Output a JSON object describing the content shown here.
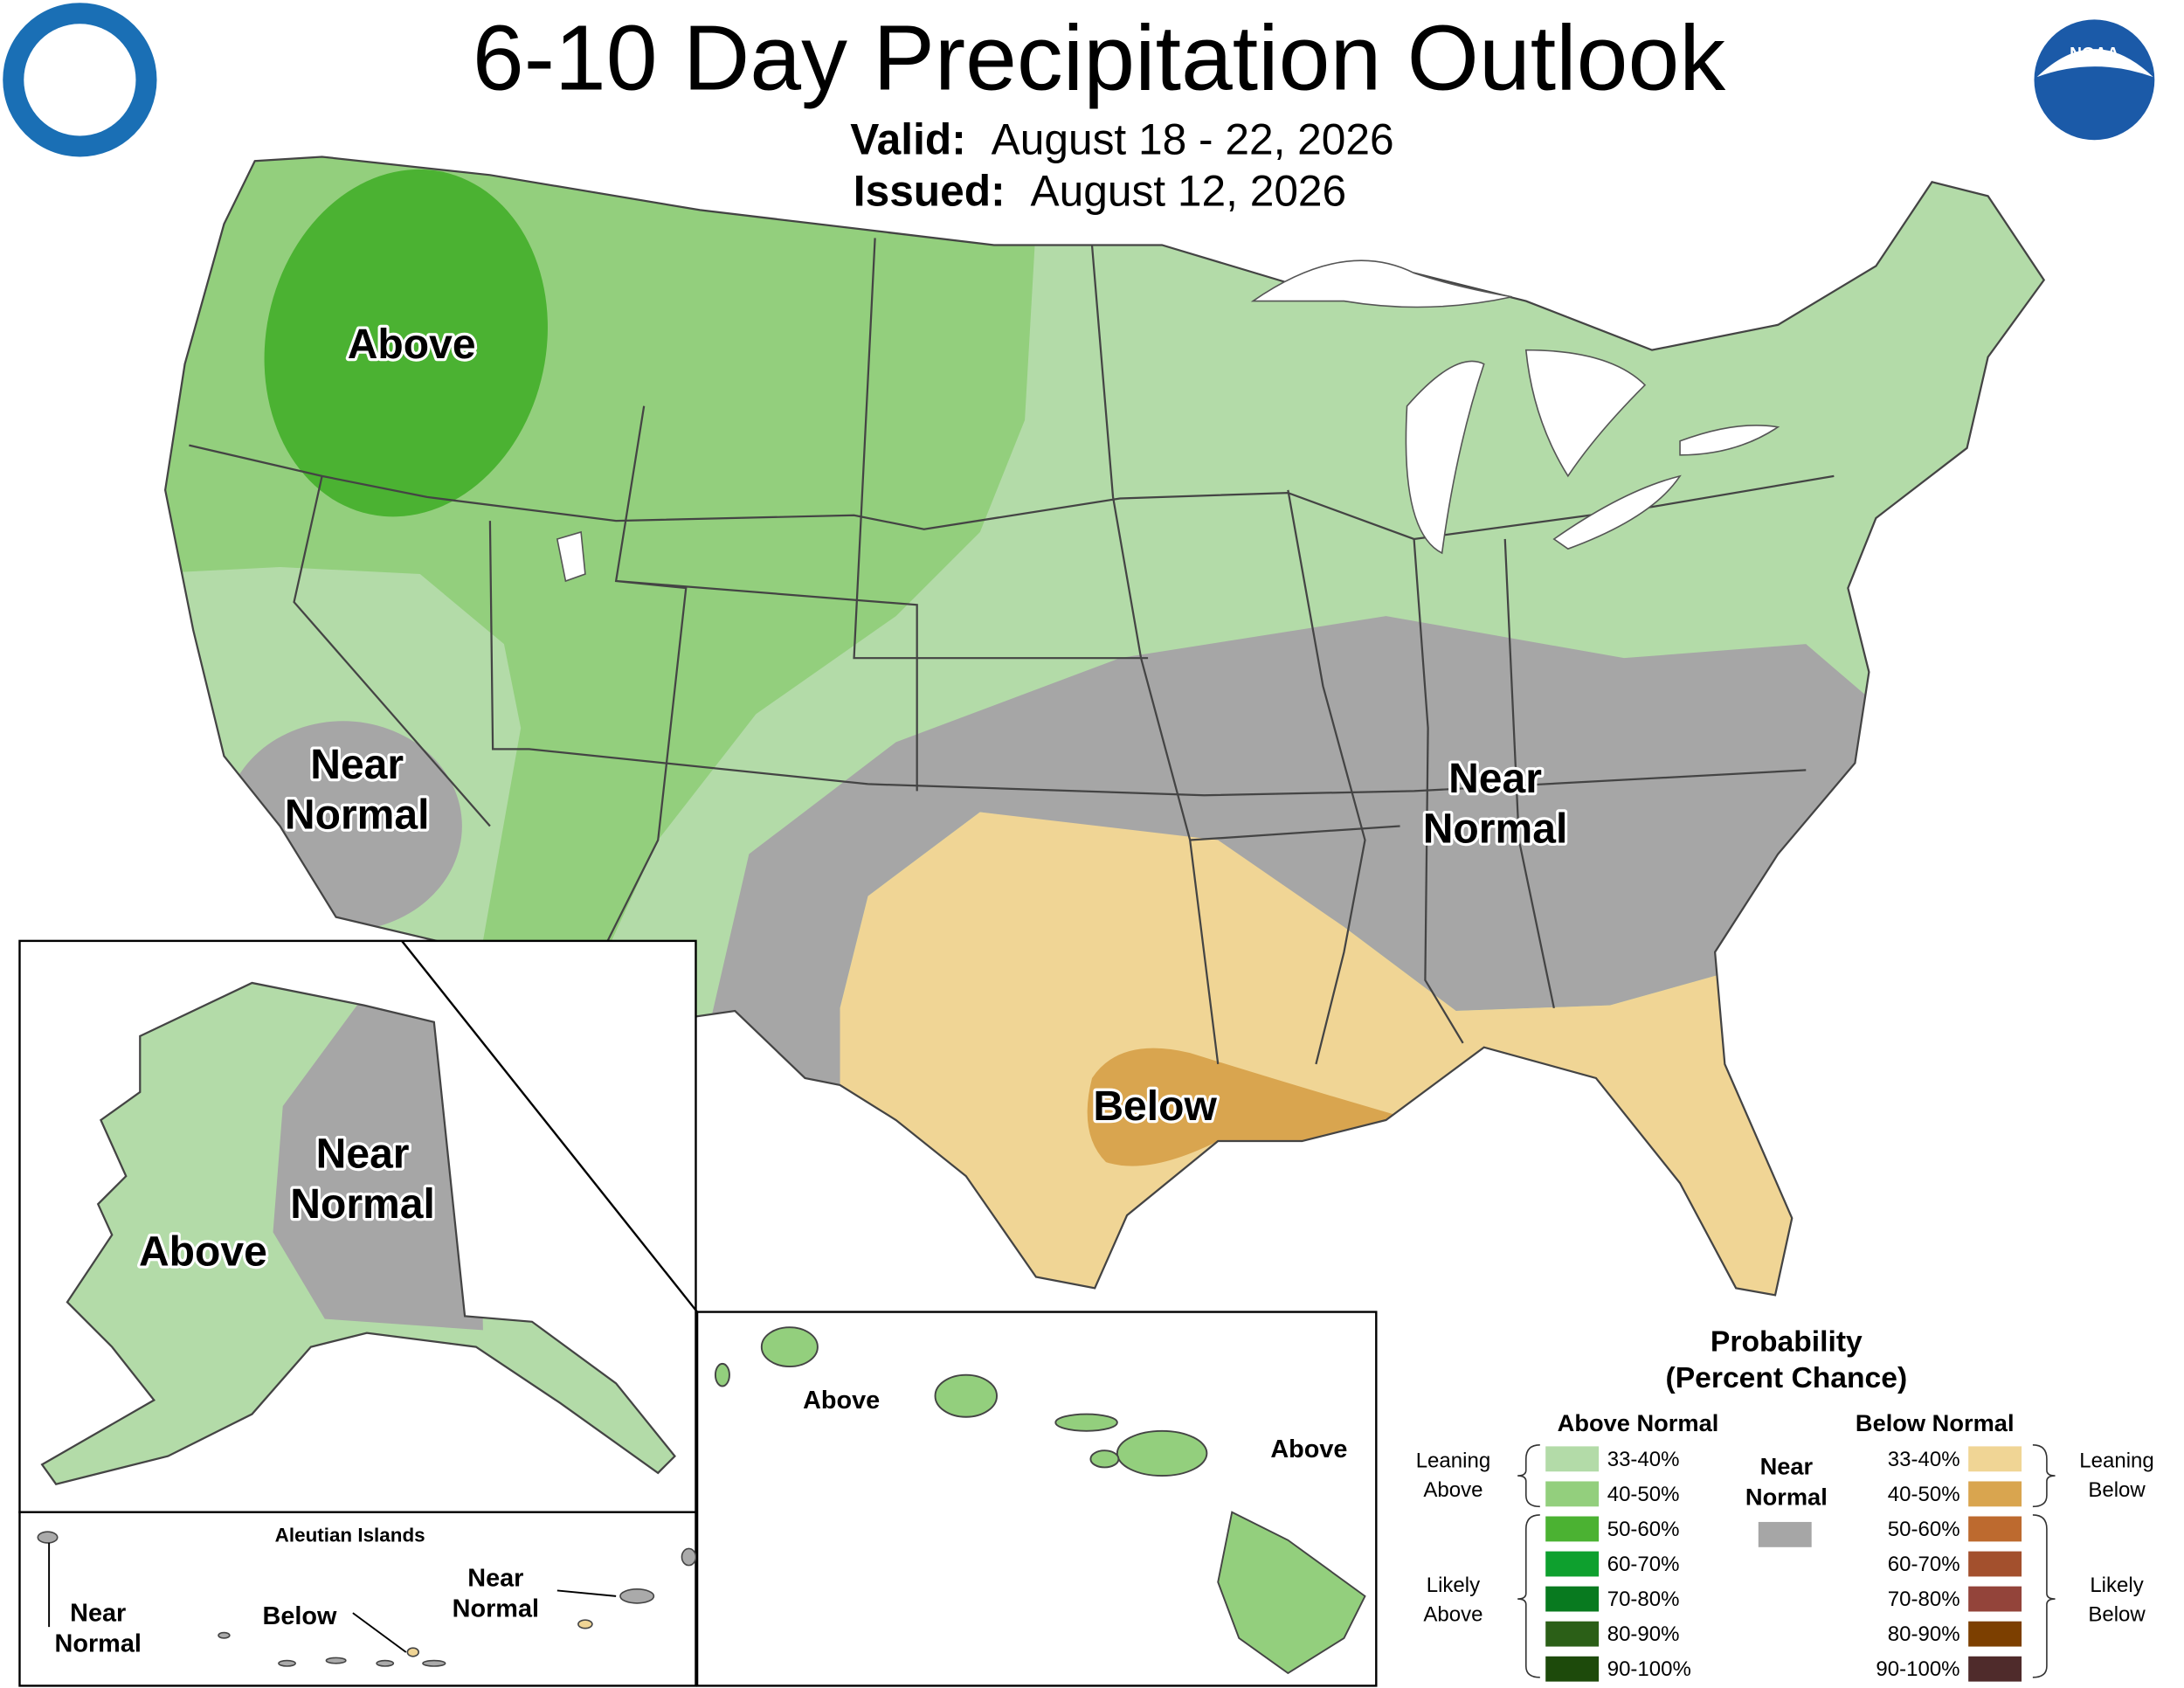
{
  "header": {
    "title": "6-10 Day Precipitation Outlook",
    "valid_label": "Valid:",
    "valid_date": "August 18 - 22, 2026",
    "issued_label": "Issued:",
    "issued_date": "August 12, 2026",
    "noaa_logo": "NOAA"
  },
  "map": {
    "labels": [
      {
        "lines": [
          "Above"
        ]
      },
      {
        "lines": [
          "Near",
          "Normal"
        ]
      },
      {
        "lines": [
          "Near",
          "Normal"
        ]
      },
      {
        "lines": [
          "Below"
        ]
      },
      {
        "lines": [
          "Above"
        ]
      },
      {
        "lines": [
          "Near",
          "Normal"
        ]
      },
      {
        "lines": [
          "Near",
          "Normal"
        ]
      },
      {
        "lines": [
          "Below"
        ]
      },
      {
        "lines": [
          "Near",
          "Normal"
        ]
      },
      {
        "lines": [
          "Above"
        ]
      },
      {
        "lines": [
          "Above"
        ]
      }
    ],
    "aleutian_title": "Aleutian Islands"
  },
  "legend": {
    "title": "Probability",
    "subtitle": "(Percent Chance)",
    "above_header": "Above Normal",
    "below_header": "Below Normal",
    "near_normal": [
      "Near",
      "Normal"
    ],
    "near_normal_color": "#a6a6a6",
    "leaning_above": [
      "Leaning",
      "Above"
    ],
    "likely_above": [
      "Likely",
      "Above"
    ],
    "leaning_below": [
      "Leaning",
      "Below"
    ],
    "likely_below": [
      "Likely",
      "Below"
    ],
    "above": [
      {
        "label": "33-40%",
        "color": "#b3dba8"
      },
      {
        "label": "40-50%",
        "color": "#93cf7d"
      },
      {
        "label": "50-60%",
        "color": "#4bb232"
      },
      {
        "label": "60-70%",
        "color": "#0ea02e"
      },
      {
        "label": "70-80%",
        "color": "#087a1f"
      },
      {
        "label": "80-90%",
        "color": "#2b5f17"
      },
      {
        "label": "90-100%",
        "color": "#1d4a0b"
      }
    ],
    "below": [
      {
        "label": "33-40%",
        "color": "#f0d595"
      },
      {
        "label": "40-50%",
        "color": "#d9a54f"
      },
      {
        "label": "50-60%",
        "color": "#bd6a2f"
      },
      {
        "label": "60-70%",
        "color": "#a3502d"
      },
      {
        "label": "70-80%",
        "color": "#93443a"
      },
      {
        "label": "80-90%",
        "color": "#7c3f00"
      },
      {
        "label": "90-100%",
        "color": "#4f2b2b"
      }
    ]
  }
}
